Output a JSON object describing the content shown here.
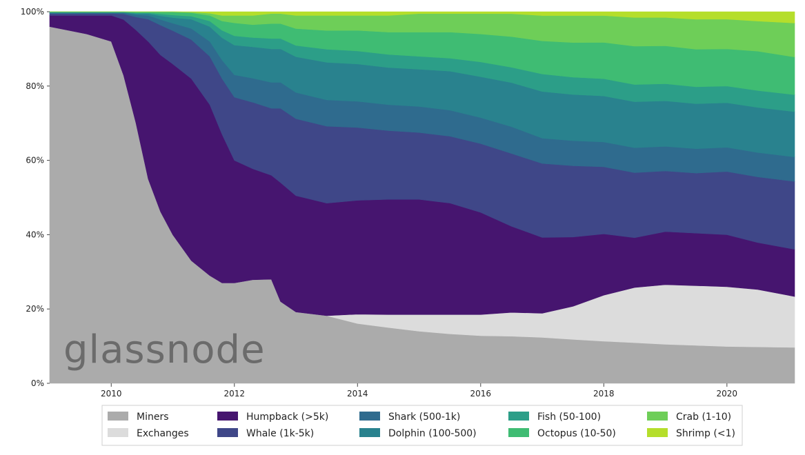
{
  "watermark": "glassnode",
  "chart_data": {
    "type": "area",
    "stacked": true,
    "normalized": true,
    "title": "",
    "xlabel": "",
    "ylabel": "",
    "xlim": [
      2009.0,
      2021.1
    ],
    "ylim": [
      0,
      100
    ],
    "x_ticks": [
      2010,
      2012,
      2014,
      2016,
      2018,
      2020
    ],
    "x_tick_labels": [
      "2010",
      "2012",
      "2014",
      "2016",
      "2018",
      "2020"
    ],
    "y_ticks": [
      0,
      20,
      40,
      60,
      80,
      100
    ],
    "y_tick_labels": [
      "0%",
      "20%",
      "40%",
      "60%",
      "80%",
      "100%"
    ],
    "legend_position": "bottom-center",
    "x": [
      2009.0,
      2009.3,
      2009.6,
      2010.0,
      2010.2,
      2010.4,
      2010.6,
      2010.8,
      2011.0,
      2011.3,
      2011.6,
      2011.8,
      2012.0,
      2012.3,
      2012.6,
      2012.75,
      2013.0,
      2013.5,
      2014.0,
      2014.5,
      2015.0,
      2015.5,
      2016.0,
      2016.5,
      2017.0,
      2017.5,
      2018.0,
      2018.5,
      2019.0,
      2019.5,
      2020.0,
      2020.5,
      2021.1
    ],
    "series": [
      {
        "name": "Miners",
        "color": "#ababab",
        "values": [
          96,
          95,
          94,
          92,
          83,
          70,
          55,
          46,
          40,
          33,
          29,
          27,
          27,
          28,
          28,
          22,
          19,
          18,
          16,
          15,
          14,
          13.3,
          12.8,
          12.3,
          11.8,
          11.4,
          11,
          10.6,
          10.3,
          10.1,
          9.9,
          9.7,
          9.5
        ]
      },
      {
        "name": "Exchanges",
        "color": "#dcdcdc",
        "values": [
          0,
          0,
          0,
          0,
          0,
          0,
          0,
          0,
          0,
          0,
          0,
          0,
          0,
          0,
          0,
          0,
          0,
          0,
          2.5,
          3.5,
          4.5,
          5.2,
          5.7,
          6.2,
          6.2,
          8.6,
          12,
          14.4,
          15.7,
          15.9,
          16.1,
          15.3,
          13.5
        ]
      },
      {
        "name": "Humpback (>5k)",
        "color": "#46156f",
        "values": [
          3,
          4,
          5,
          7,
          15,
          25,
          37,
          42,
          46,
          49,
          46,
          40,
          33,
          30,
          28,
          32,
          31,
          30,
          30.5,
          31,
          31,
          30,
          27.5,
          22.5,
          19.5,
          18,
          16,
          13,
          14,
          14,
          14,
          12.5,
          12.5
        ]
      },
      {
        "name": "Whale (1k-5k)",
        "color": "#3f4788",
        "values": [
          0.5,
          0.5,
          0.5,
          0.5,
          1.5,
          3.5,
          6,
          8,
          9,
          10.5,
          13,
          15,
          17,
          18,
          18,
          20,
          20.5,
          20.5,
          19.5,
          18.5,
          18,
          18,
          18.5,
          19,
          19,
          18.5,
          17.5,
          17,
          16,
          16,
          17,
          17.5,
          18
        ]
      },
      {
        "name": "Shark (500-1k)",
        "color": "#2f6b8e",
        "values": [
          0.1,
          0.1,
          0.2,
          0.2,
          0.3,
          0.6,
          1,
          1.5,
          2,
          3,
          4,
          5,
          6,
          6.5,
          7,
          7,
          7,
          7,
          7,
          7,
          7,
          7,
          7,
          7,
          6.5,
          6.5,
          6.5,
          6.5,
          6.5,
          6.5,
          6.5,
          6.5,
          6.5
        ]
      },
      {
        "name": "Dolphin (100-500)",
        "color": "#29828e",
        "values": [
          0.2,
          0.2,
          0.1,
          0.1,
          0.1,
          0.3,
          0.5,
          1,
          1.5,
          2.5,
          4,
          6,
          8,
          8.5,
          9,
          9,
          9.5,
          10,
          10,
          10,
          10,
          10.5,
          11,
          11.5,
          12,
          12,
          12,
          12,
          12,
          12,
          12,
          12,
          12
        ]
      },
      {
        "name": "Fish (50-100)",
        "color": "#2c9e88",
        "values": [
          0.1,
          0.1,
          0.1,
          0.1,
          0.1,
          0.2,
          0.2,
          0.5,
          0.7,
          0.8,
          1.5,
          2,
          2.5,
          2.5,
          2.8,
          2.8,
          3,
          3.5,
          3.5,
          3.5,
          3.5,
          3.5,
          4,
          4,
          4.5,
          4.5,
          4.5,
          4.5,
          4.5,
          4.5,
          4.5,
          4.5,
          4.5
        ]
      },
      {
        "name": "Octopus (10-50)",
        "color": "#3fbc73",
        "values": [
          0.1,
          0.1,
          0.1,
          0.1,
          0.1,
          0.2,
          0.2,
          0.5,
          0.8,
          0.9,
          1.5,
          2.5,
          3.5,
          3.5,
          4,
          4,
          4.5,
          5,
          5.5,
          6,
          6.5,
          7,
          7.5,
          8,
          8.5,
          9,
          9.5,
          10,
          10,
          10,
          10,
          10.5,
          10
        ]
      },
      {
        "name": "Crab (1-10)",
        "color": "#6ece58",
        "values": [
          0,
          0,
          0,
          0,
          0,
          0.1,
          0.1,
          0.1,
          0.1,
          0.2,
          0.6,
          1.5,
          2,
          2.5,
          2.7,
          2.7,
          3.5,
          4,
          4,
          4.5,
          5,
          5,
          5.5,
          6,
          6.5,
          7,
          7,
          7.5,
          7.5,
          8,
          8,
          8,
          9
        ]
      },
      {
        "name": "Shrimp (<1)",
        "color": "#b5de2b",
        "values": [
          0,
          0,
          0,
          0,
          0,
          0,
          0,
          0,
          0,
          0.1,
          0.4,
          1,
          1,
          1,
          0.5,
          0.5,
          1,
          1,
          1,
          1,
          0.5,
          0.5,
          0.5,
          0.5,
          1,
          1,
          1,
          1.5,
          1.5,
          2,
          2,
          2.5,
          3
        ]
      }
    ]
  }
}
